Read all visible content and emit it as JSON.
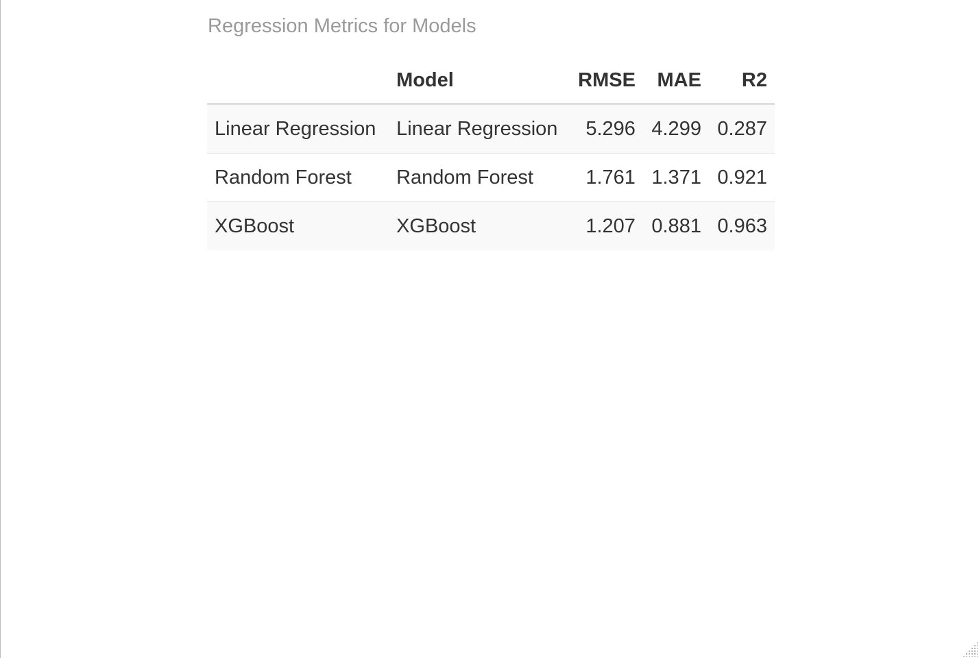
{
  "table": {
    "caption": "Regression Metrics for Models",
    "headers": [
      "",
      "Model",
      "RMSE",
      "MAE",
      "R2"
    ],
    "rows": [
      {
        "index": "Linear Regression",
        "model": "Linear Regression",
        "rmse": "5.296",
        "mae": "4.299",
        "r2": "0.287"
      },
      {
        "index": "Random Forest",
        "model": "Random Forest",
        "rmse": "1.761",
        "mae": "1.371",
        "r2": "0.921"
      },
      {
        "index": "XGBoost",
        "model": "XGBoost",
        "rmse": "1.207",
        "mae": "0.881",
        "r2": "0.963"
      }
    ]
  },
  "icons": {
    "resize_grip": "resize-grip-icon"
  },
  "colors": {
    "caption": "#9a9a9a",
    "text": "#333333",
    "stripe": "#f9f9f9",
    "rule": "#dddddd"
  }
}
